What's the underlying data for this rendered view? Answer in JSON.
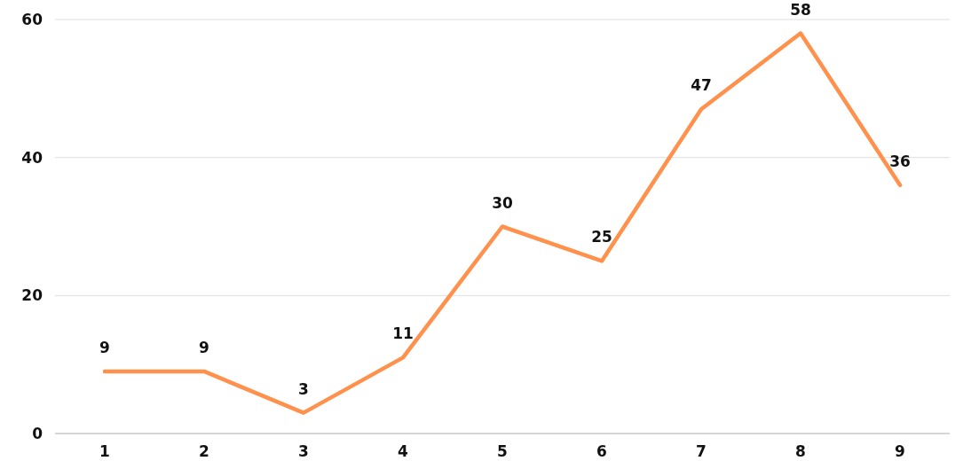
{
  "chart_data": {
    "type": "line",
    "categories": [
      "1",
      "2",
      "3",
      "4",
      "5",
      "6",
      "7",
      "8",
      "9"
    ],
    "series": [
      {
        "color": "#ff914d",
        "values": [
          9,
          9,
          3,
          11,
          30,
          25,
          47,
          58,
          36
        ]
      }
    ],
    "ylim": [
      0,
      60
    ],
    "yticks": [
      0,
      20,
      40,
      60
    ],
    "grid": "y",
    "data_labels": true,
    "marker": "none",
    "line_style": "solid"
  }
}
